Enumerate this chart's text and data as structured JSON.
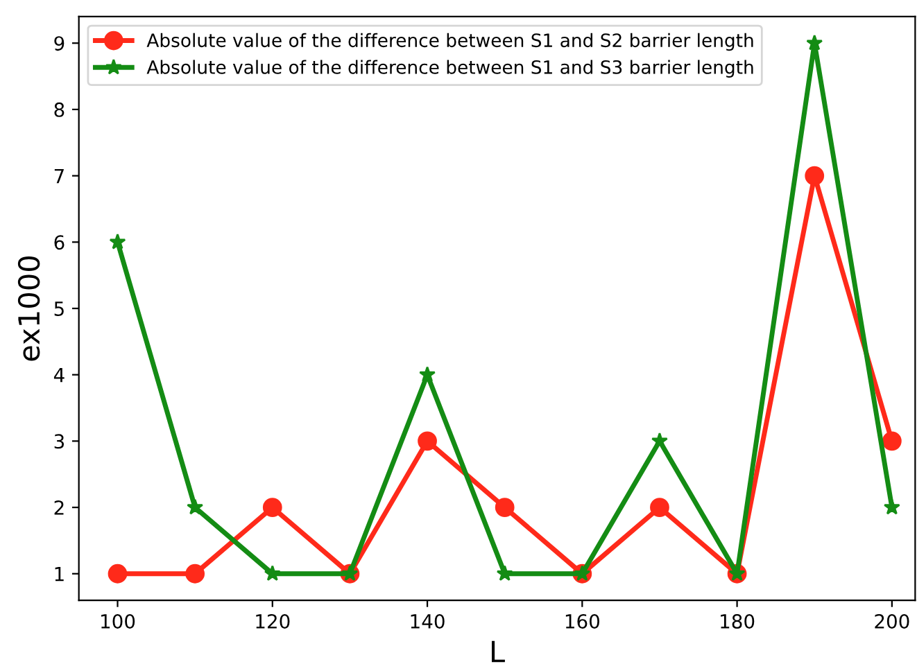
{
  "chart_data": {
    "type": "line",
    "xlabel": "L",
    "ylabel": "ex1000",
    "x": [
      100,
      110,
      120,
      130,
      140,
      150,
      160,
      170,
      180,
      190,
      200
    ],
    "series": [
      {
        "name": "Absolute value of the difference between S1 and S2 barrier length",
        "color": "#ff2a1a",
        "marker": "circle",
        "values": [
          1,
          1,
          2,
          1,
          3,
          2,
          1,
          2,
          1,
          7,
          3
        ]
      },
      {
        "name": "Absolute value of the difference between S1 and S3 barrier length",
        "color": "#148c14",
        "marker": "star",
        "values": [
          6,
          2,
          1,
          1,
          4,
          1,
          1,
          3,
          1,
          9,
          2
        ]
      }
    ],
    "xlim": [
      95,
      203
    ],
    "xticks": [
      100,
      120,
      140,
      160,
      180,
      200
    ],
    "ylim": [
      0.6,
      9.4
    ],
    "yticks": [
      1,
      2,
      3,
      4,
      5,
      6,
      7,
      8,
      9
    ],
    "grid": false,
    "legend": "top left",
    "line_style": "solid"
  }
}
